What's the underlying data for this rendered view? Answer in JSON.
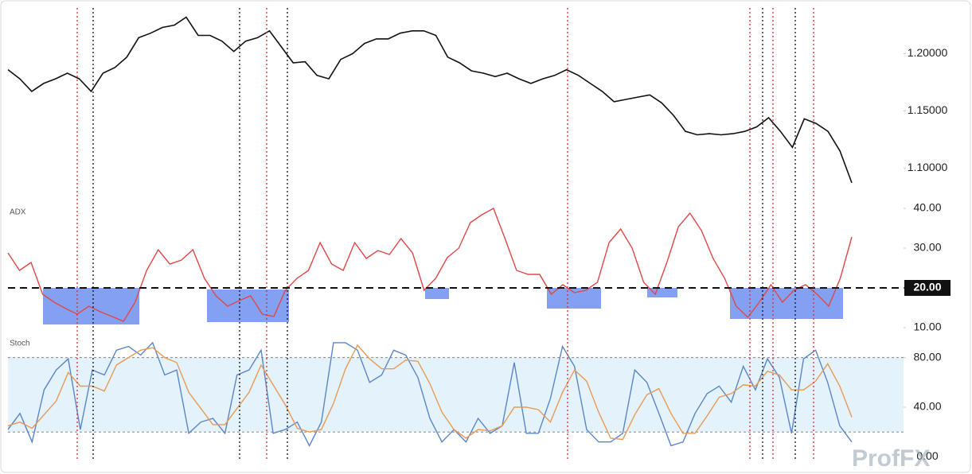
{
  "chart_data": [
    {
      "type": "line",
      "ylim": [
        1.073,
        1.247
      ],
      "yticks": [
        {
          "value": 1.2,
          "label": "1.20000"
        },
        {
          "value": 1.15,
          "label": "1.15000"
        },
        {
          "value": 1.1,
          "label": "1.10000"
        }
      ],
      "series": [
        {
          "color": "#111111",
          "values": [
            1.186,
            1.178,
            1.167,
            1.174,
            1.178,
            1.183,
            1.178,
            1.167,
            1.183,
            1.188,
            1.197,
            1.214,
            1.218,
            1.223,
            1.225,
            1.232,
            1.216,
            1.216,
            1.211,
            1.202,
            1.211,
            1.214,
            1.22,
            1.206,
            1.192,
            1.193,
            1.181,
            1.178,
            1.195,
            1.2,
            1.209,
            1.213,
            1.213,
            1.218,
            1.22,
            1.22,
            1.216,
            1.197,
            1.192,
            1.185,
            1.183,
            1.18,
            1.183,
            1.178,
            1.174,
            1.178,
            1.181,
            1.186,
            1.181,
            1.174,
            1.167,
            1.158,
            1.16,
            1.162,
            1.164,
            1.157,
            1.146,
            1.132,
            1.129,
            1.13,
            1.129,
            1.13,
            1.132,
            1.136,
            1.144,
            1.132,
            1.118,
            1.143,
            1.139,
            1.132,
            1.115,
            1.087
          ]
        }
      ]
    },
    {
      "type": "line",
      "title": "ADX",
      "ylim": [
        8.4,
        41.4
      ],
      "reference_line": 20,
      "yticks": [
        {
          "value": 40,
          "label": "40.00"
        },
        {
          "value": 30,
          "label": "30.00"
        },
        {
          "value": 20,
          "label": "20.00"
        },
        {
          "value": 10,
          "label": "10.00"
        }
      ],
      "series": [
        {
          "color": "#e04848",
          "values": [
            28.8,
            24.4,
            26.4,
            18.4,
            16.4,
            14.8,
            13.4,
            15.4,
            14,
            12.8,
            11.6,
            16.4,
            24.4,
            29.6,
            26,
            27,
            29.6,
            22.4,
            18,
            15.4,
            16.8,
            18,
            13.4,
            12.8,
            19.4,
            22.4,
            24.4,
            31.4,
            26,
            24.4,
            31.4,
            27.4,
            29.4,
            28.4,
            32.4,
            28.8,
            19.4,
            22.4,
            27.6,
            30,
            36.4,
            38.4,
            40,
            32.4,
            24.4,
            23.4,
            23.4,
            18.4,
            20.8,
            18.8,
            19.4,
            21.4,
            31.4,
            34.8,
            30,
            21.4,
            18.4,
            26.4,
            35.4,
            38.8,
            34.4,
            27.4,
            22.4,
            15.4,
            12.6,
            16.4,
            20.8,
            16.4,
            19.4,
            20.8,
            18.4,
            15.4,
            22.4,
            32.8
          ]
        }
      ]
    },
    {
      "type": "line",
      "title": "Stoch",
      "ylim": [
        -10,
        99
      ],
      "band": [
        20,
        80
      ],
      "yticks": [
        {
          "value": 80,
          "label": "80.00"
        },
        {
          "value": 40,
          "label": "40.00"
        },
        {
          "value": 0,
          "label": "0.00"
        }
      ],
      "series": [
        {
          "color": "#5a86c8",
          "values": [
            22,
            35,
            12,
            54,
            70,
            79,
            22,
            70,
            66,
            86,
            89,
            82,
            92,
            66,
            70,
            19,
            28,
            31,
            19,
            66,
            70,
            86,
            19,
            22,
            28,
            9,
            28,
            92,
            92,
            86,
            60,
            66,
            86,
            82,
            64,
            31,
            12,
            22,
            12,
            31,
            19,
            25,
            76,
            19,
            19,
            47,
            89,
            73,
            22,
            12,
            12,
            19,
            70,
            60,
            35,
            9,
            12,
            35,
            51,
            57,
            44,
            73,
            54,
            79,
            64,
            19,
            79,
            86,
            60,
            25,
            12
          ]
        },
        {
          "color": "#e89a58",
          "values": [
            25,
            28,
            23,
            34,
            45,
            68,
            57,
            57,
            53,
            74,
            80,
            86,
            88,
            80,
            76,
            52,
            39,
            26,
            26,
            39,
            52,
            74,
            58,
            42,
            23,
            20,
            22,
            43,
            71,
            90,
            79,
            71,
            71,
            78,
            77,
            59,
            36,
            22,
            15,
            22,
            21,
            25,
            40,
            40,
            38,
            28,
            52,
            70,
            61,
            36,
            15,
            14,
            34,
            50,
            55,
            35,
            19,
            19,
            33,
            48,
            51,
            58,
            57,
            69,
            66,
            54,
            54,
            61,
            75,
            57,
            32
          ]
        }
      ]
    }
  ],
  "watermark": "ProfFX"
}
